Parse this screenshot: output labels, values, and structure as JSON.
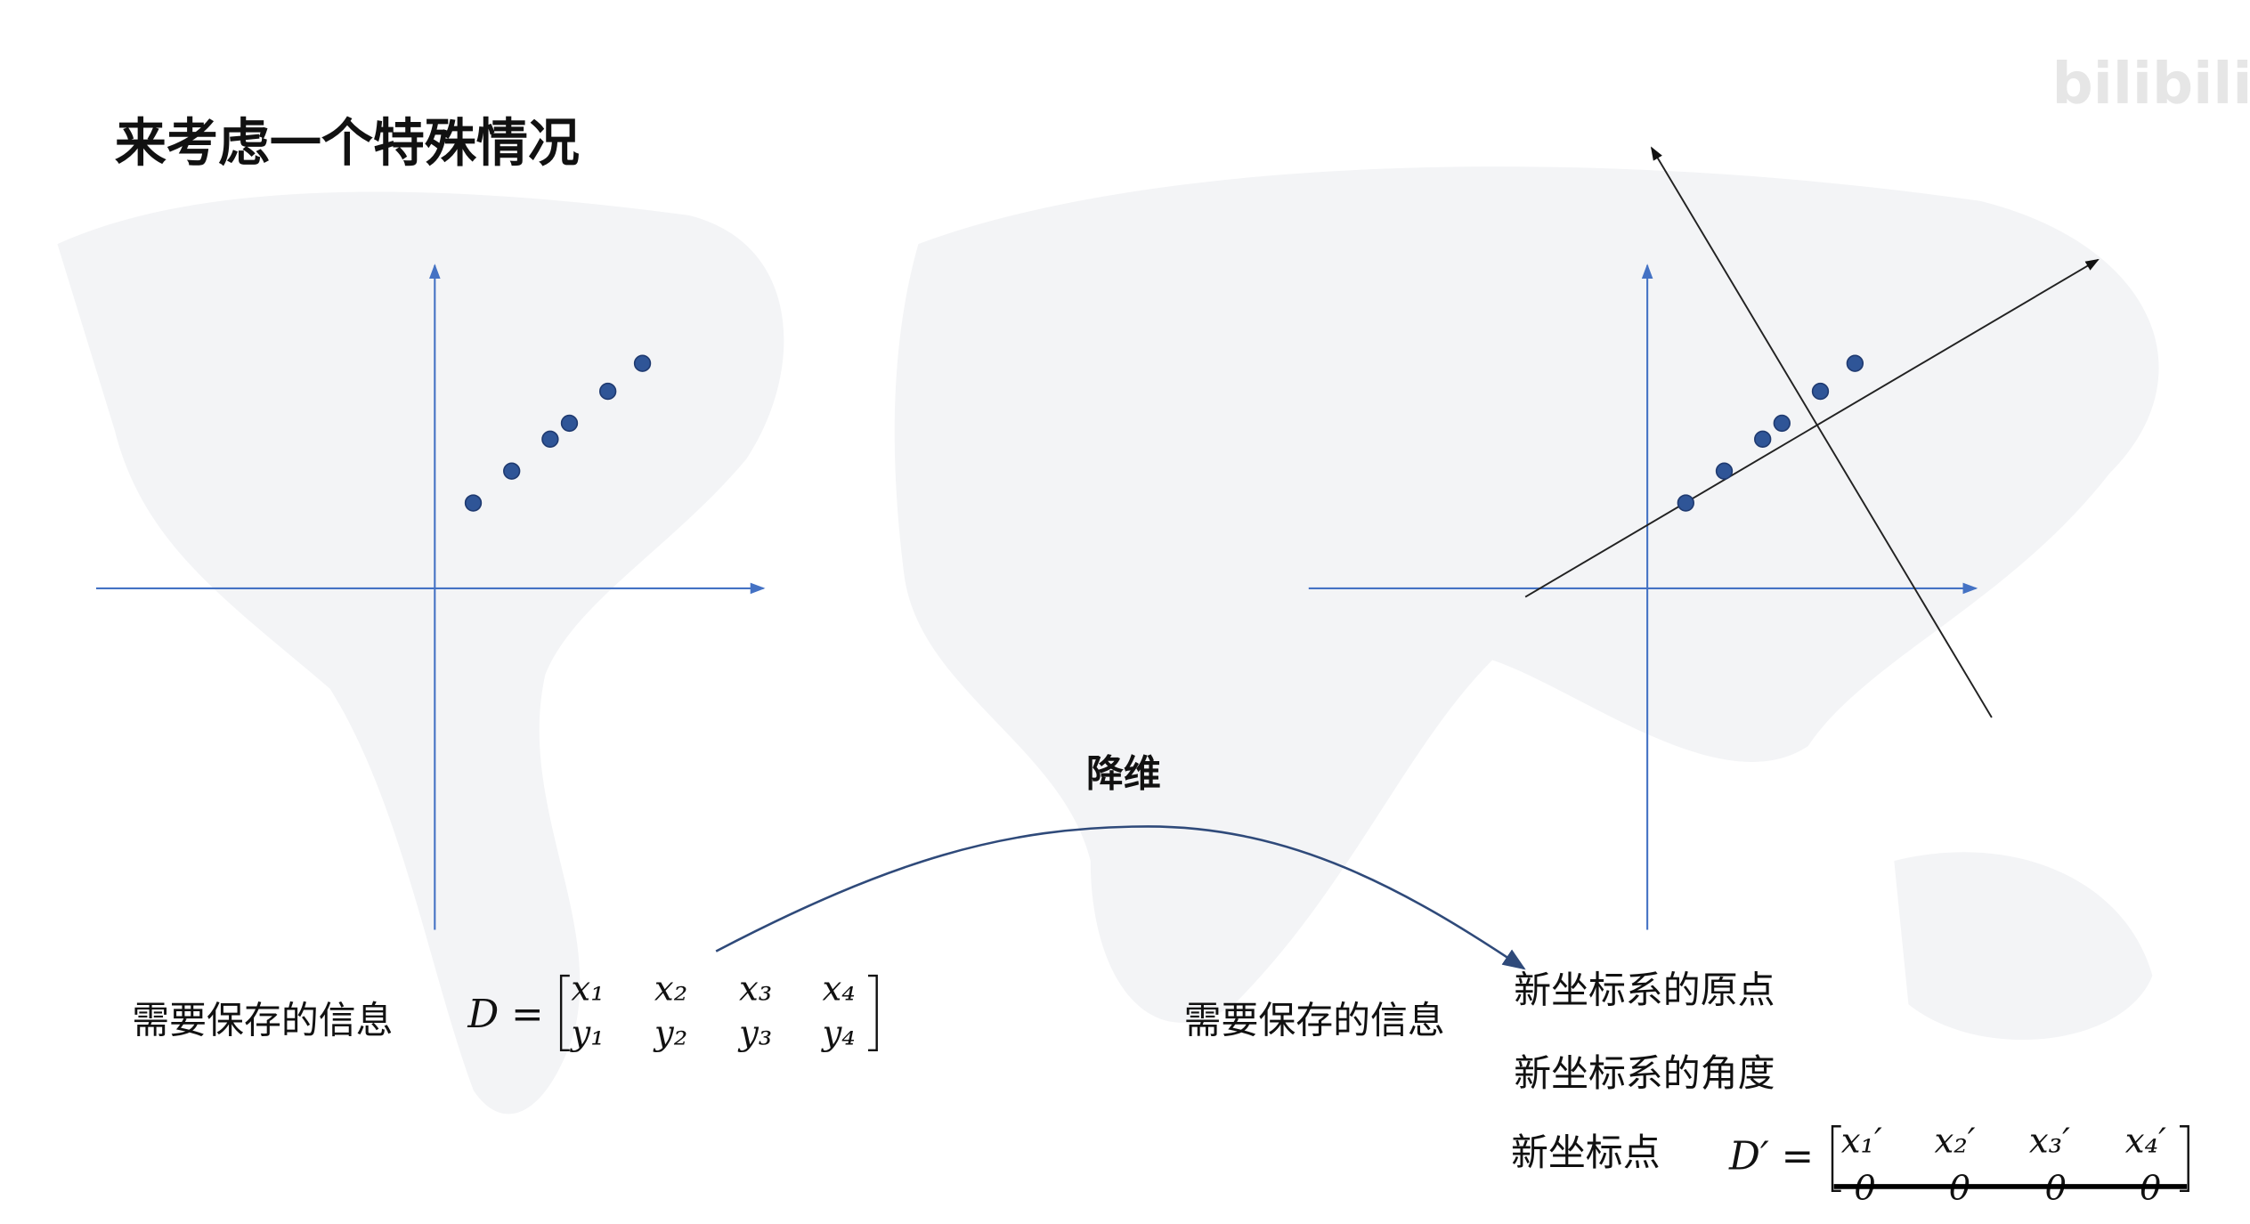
{
  "title": "来考虑一个特殊情况",
  "watermark": "bilibili",
  "colors": {
    "axis": "#4472c4",
    "point": "#2f5597",
    "new_axis": "#222222",
    "arrow_curve": "#2f4a7a"
  },
  "left_plot": {
    "points": [
      [
        1,
        2.5
      ],
      [
        2,
        3.3
      ],
      [
        3,
        4.1
      ],
      [
        3.5,
        4.5
      ],
      [
        4.5,
        5.3
      ],
      [
        5.4,
        6.0
      ]
    ]
  },
  "arrow_label": "降维",
  "left_info": {
    "label": "需要保存的信息",
    "matrix_name": "D =",
    "row1": [
      "x₁",
      "x₂",
      "x₃",
      "x₄"
    ],
    "row2": [
      "y₁",
      "y₂",
      "y₃",
      "y₄"
    ]
  },
  "right_info": {
    "label": "需要保存的信息",
    "item1": "新坐标系的原点",
    "item2": "新坐标系的角度",
    "item3": "新坐标点",
    "matrix_name": "D′ =",
    "row1": [
      "x₁′",
      "x₂′",
      "x₃′",
      "x₄′"
    ],
    "row2": [
      "0",
      "0",
      "0",
      "0"
    ]
  }
}
